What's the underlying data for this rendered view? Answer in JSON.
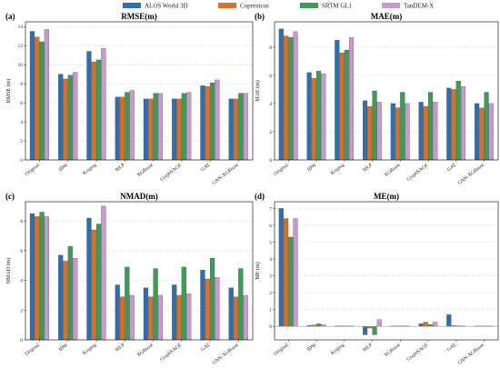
{
  "legend": {
    "items": [
      {
        "label": "ALOS World 3D",
        "color": "#2f6fae"
      },
      {
        "label": "Copernicus",
        "color": "#d9702a"
      },
      {
        "label": "SRTM GL1",
        "color": "#3f9a5a"
      },
      {
        "label": "TanDEM-X",
        "color": "#c49ad1"
      }
    ]
  },
  "chart_data": [
    {
      "type": "bar",
      "panel": "(a)",
      "title": "RMSE(m)",
      "ylabel": "RMSE (m)",
      "ylim": [
        0,
        14.5
      ],
      "yticks": [
        0,
        2,
        4,
        6,
        8,
        10,
        12,
        14
      ],
      "categories": [
        "Original",
        "IDW",
        "Kriging",
        "MLP",
        "XGBoost",
        "GraphSAGE",
        "GAT",
        "GNN-XGBoost"
      ],
      "series": [
        {
          "name": "ALOS World 3D",
          "values": [
            13.5,
            9.0,
            11.4,
            6.6,
            6.4,
            6.4,
            7.8,
            6.4
          ]
        },
        {
          "name": "Copernicus",
          "values": [
            12.9,
            8.5,
            10.3,
            6.6,
            6.4,
            6.4,
            7.7,
            6.4
          ]
        },
        {
          "name": "SRTM GL1",
          "values": [
            12.4,
            8.9,
            10.5,
            7.1,
            7.0,
            7.0,
            8.1,
            7.0
          ]
        },
        {
          "name": "TanDEM-X",
          "values": [
            13.7,
            9.2,
            11.7,
            7.3,
            7.0,
            7.1,
            8.4,
            7.0
          ]
        }
      ]
    },
    {
      "type": "bar",
      "panel": "(b)",
      "title": "MAE(m)",
      "ylabel": "MAE (m)",
      "ylim": [
        0,
        9.8
      ],
      "yticks": [
        0,
        2,
        4,
        6,
        8
      ],
      "categories": [
        "Original",
        "IDW",
        "Kriging",
        "MLP",
        "XGBoost",
        "GraphSAGE",
        "GAT",
        "GNN-XGBoost"
      ],
      "series": [
        {
          "name": "ALOS World 3D",
          "values": [
            9.3,
            6.2,
            8.5,
            4.2,
            4.0,
            4.1,
            5.1,
            4.0
          ]
        },
        {
          "name": "Copernicus",
          "values": [
            8.8,
            5.8,
            7.6,
            3.8,
            3.7,
            3.8,
            5.0,
            3.7
          ]
        },
        {
          "name": "SRTM GL1",
          "values": [
            8.7,
            6.3,
            7.8,
            4.9,
            4.8,
            4.8,
            5.6,
            4.8
          ]
        },
        {
          "name": "TanDEM-X",
          "values": [
            9.1,
            6.1,
            8.7,
            4.1,
            4.0,
            4.1,
            5.2,
            4.0
          ]
        }
      ]
    },
    {
      "type": "bar",
      "panel": "(c)",
      "title": "NMAD(m)",
      "ylabel": "NMAD (m)",
      "ylim": [
        0,
        9.3
      ],
      "yticks": [
        0,
        2,
        4,
        6,
        8
      ],
      "categories": [
        "Original",
        "IDW",
        "Kriging",
        "MLP",
        "XGBoost",
        "GraphSAGE",
        "GAT",
        "GNN-XGBoost"
      ],
      "series": [
        {
          "name": "ALOS World 3D",
          "values": [
            8.5,
            5.7,
            8.2,
            3.7,
            3.5,
            3.7,
            4.7,
            3.5
          ]
        },
        {
          "name": "Copernicus",
          "values": [
            8.3,
            5.3,
            7.4,
            2.9,
            2.9,
            3.0,
            4.1,
            2.9
          ]
        },
        {
          "name": "SRTM GL1",
          "values": [
            8.6,
            6.3,
            7.8,
            4.9,
            4.8,
            4.9,
            5.5,
            4.8
          ]
        },
        {
          "name": "TanDEM-X",
          "values": [
            8.3,
            5.5,
            9.0,
            3.0,
            3.0,
            3.1,
            4.2,
            3.0
          ]
        }
      ]
    },
    {
      "type": "bar",
      "panel": "(d)",
      "title": "ME(m)",
      "ylabel": "ME (m)",
      "ylim": [
        -0.8,
        7.4
      ],
      "yticks": [
        0,
        1,
        2,
        3,
        4,
        5,
        6,
        7
      ],
      "categories": [
        "Original",
        "IDW",
        "Kriging",
        "MLP",
        "XGBoost",
        "GraphSAGE",
        "GAT",
        "GNN-XGBoost"
      ],
      "series": [
        {
          "name": "ALOS World 3D",
          "values": [
            7.0,
            0.05,
            0.03,
            -0.5,
            0.02,
            0.15,
            0.7,
            0.02
          ]
        },
        {
          "name": "Copernicus",
          "values": [
            6.4,
            0.08,
            0.02,
            -0.1,
            0.02,
            0.25,
            0.05,
            0.02
          ]
        },
        {
          "name": "SRTM GL1",
          "values": [
            5.3,
            0.15,
            0.03,
            -0.5,
            0.03,
            0.1,
            0.03,
            0.02
          ]
        },
        {
          "name": "TanDEM-X",
          "values": [
            6.4,
            0.1,
            0.02,
            0.4,
            0.03,
            0.25,
            0.02,
            0.02
          ]
        }
      ]
    }
  ]
}
